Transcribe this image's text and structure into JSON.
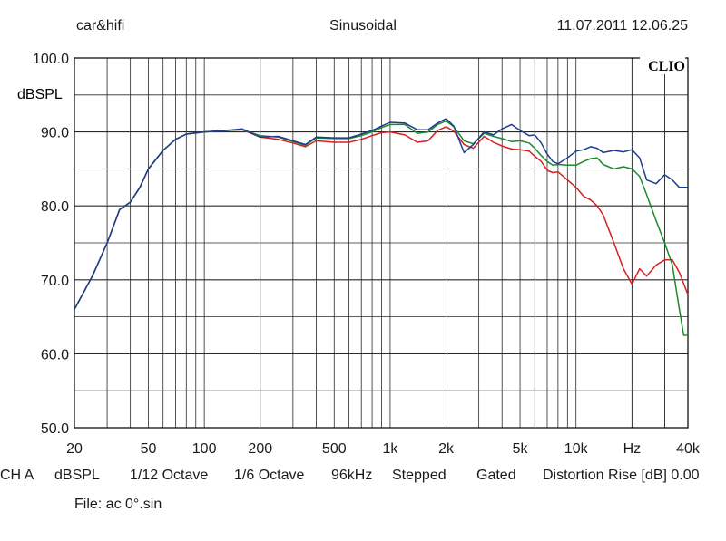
{
  "header": {
    "left": "car&hifi",
    "center": "Sinusoidal",
    "right": "11.07.2011 12.06.25"
  },
  "brand": "CLIO",
  "colors": {
    "grid": "#2a2a2a",
    "blue": "#1f3d8f",
    "green": "#1b8a2e",
    "red": "#d42020"
  },
  "footer": {
    "channel": "CH A",
    "unit": "dBSPL",
    "smoothing1": "1/12 Octave",
    "smoothing2": "1/6 Octave",
    "rate": "96kHz",
    "mode": "Stepped",
    "gating": "Gated",
    "distortion": "Distortion Rise [dB] 0.00",
    "file": "File: ac 0°.sin"
  },
  "chart_data": {
    "type": "line",
    "xscale": "log",
    "xlim": [
      20,
      40000
    ],
    "ylim": [
      50,
      100
    ],
    "ylabel": "dBSPL",
    "grid": true,
    "y_ticks": [
      {
        "v": 100,
        "label": "100.0"
      },
      {
        "v": 90,
        "label": "90.0"
      },
      {
        "v": 80,
        "label": "80.0"
      },
      {
        "v": 70,
        "label": "70.0"
      },
      {
        "v": 60,
        "label": "60.0"
      },
      {
        "v": 50,
        "label": "50.0"
      }
    ],
    "x_ticks": [
      {
        "v": 20,
        "label": "20"
      },
      {
        "v": 50,
        "label": "50"
      },
      {
        "v": 100,
        "label": "100"
      },
      {
        "v": 200,
        "label": "200"
      },
      {
        "v": 500,
        "label": "500"
      },
      {
        "v": 1000,
        "label": "1k"
      },
      {
        "v": 2000,
        "label": "2k"
      },
      {
        "v": 5000,
        "label": "5k"
      },
      {
        "v": 10000,
        "label": "10k"
      },
      {
        "v": 20000,
        "label": "Hz"
      },
      {
        "v": 40000,
        "label": "40k"
      }
    ],
    "series": [
      {
        "color": "#d42020",
        "points": [
          [
            20,
            66
          ],
          [
            25,
            70.5
          ],
          [
            30,
            75
          ],
          [
            35,
            79.5
          ],
          [
            40,
            80.5
          ],
          [
            45,
            82.5
          ],
          [
            50,
            85
          ],
          [
            60,
            87.5
          ],
          [
            70,
            89
          ],
          [
            80,
            89.7
          ],
          [
            100,
            90
          ],
          [
            130,
            90.2
          ],
          [
            160,
            90.3
          ],
          [
            200,
            89.3
          ],
          [
            250,
            89
          ],
          [
            300,
            88.5
          ],
          [
            350,
            88
          ],
          [
            400,
            88.8
          ],
          [
            500,
            88.6
          ],
          [
            600,
            88.6
          ],
          [
            700,
            89
          ],
          [
            800,
            89.5
          ],
          [
            900,
            89.9
          ],
          [
            1000,
            90
          ],
          [
            1200,
            89.6
          ],
          [
            1400,
            88.6
          ],
          [
            1600,
            88.8
          ],
          [
            1800,
            90.2
          ],
          [
            2000,
            90.7
          ],
          [
            2200,
            90.1
          ],
          [
            2500,
            88.3
          ],
          [
            2800,
            87.8
          ],
          [
            3200,
            89.4
          ],
          [
            3600,
            88.6
          ],
          [
            4000,
            88.1
          ],
          [
            4500,
            87.7
          ],
          [
            5000,
            87.6
          ],
          [
            5600,
            87.4
          ],
          [
            6000,
            86.7
          ],
          [
            6500,
            86
          ],
          [
            7000,
            84.8
          ],
          [
            7500,
            84.5
          ],
          [
            8000,
            84.6
          ],
          [
            9000,
            83.5
          ],
          [
            10000,
            82.5
          ],
          [
            11000,
            81.3
          ],
          [
            12000,
            80.8
          ],
          [
            13000,
            80
          ],
          [
            14000,
            78.8
          ],
          [
            16000,
            75
          ],
          [
            18000,
            71.5
          ],
          [
            20000,
            69.4
          ],
          [
            22000,
            71.5
          ],
          [
            24000,
            70.5
          ],
          [
            27000,
            72
          ],
          [
            30000,
            72.7
          ],
          [
            33000,
            72.7
          ],
          [
            36000,
            71
          ],
          [
            40000,
            68
          ]
        ]
      },
      {
        "color": "#1b8a2e",
        "points": [
          [
            20,
            66
          ],
          [
            25,
            70.5
          ],
          [
            30,
            75
          ],
          [
            35,
            79.5
          ],
          [
            40,
            80.5
          ],
          [
            45,
            82.5
          ],
          [
            50,
            85
          ],
          [
            60,
            87.5
          ],
          [
            70,
            89
          ],
          [
            80,
            89.7
          ],
          [
            100,
            90
          ],
          [
            130,
            90.2
          ],
          [
            160,
            90.3
          ],
          [
            200,
            89.5
          ],
          [
            250,
            89.3
          ],
          [
            300,
            88.7
          ],
          [
            350,
            88.2
          ],
          [
            400,
            89.2
          ],
          [
            500,
            89.1
          ],
          [
            600,
            89.1
          ],
          [
            700,
            89.5
          ],
          [
            800,
            90
          ],
          [
            900,
            90.6
          ],
          [
            1000,
            91
          ],
          [
            1200,
            91
          ],
          [
            1400,
            89.8
          ],
          [
            1600,
            90
          ],
          [
            1800,
            91
          ],
          [
            2000,
            91.5
          ],
          [
            2200,
            90.7
          ],
          [
            2500,
            88.8
          ],
          [
            2800,
            88.4
          ],
          [
            3200,
            89.8
          ],
          [
            3600,
            89.4
          ],
          [
            4000,
            89.1
          ],
          [
            4500,
            88.7
          ],
          [
            5000,
            88.8
          ],
          [
            5600,
            88.5
          ],
          [
            6000,
            87.8
          ],
          [
            6500,
            86.8
          ],
          [
            7000,
            86
          ],
          [
            7500,
            85.5
          ],
          [
            8000,
            85.6
          ],
          [
            9000,
            85.5
          ],
          [
            10000,
            85.5
          ],
          [
            11000,
            86
          ],
          [
            12000,
            86.4
          ],
          [
            13000,
            86.5
          ],
          [
            14000,
            85.6
          ],
          [
            16000,
            85
          ],
          [
            18000,
            85.3
          ],
          [
            20000,
            85
          ],
          [
            22000,
            84
          ],
          [
            24000,
            81.5
          ],
          [
            27000,
            78
          ],
          [
            30000,
            75
          ],
          [
            33000,
            72
          ],
          [
            36000,
            66
          ],
          [
            38000,
            62.5
          ],
          [
            40000,
            62.5
          ]
        ]
      },
      {
        "color": "#1f3d8f",
        "points": [
          [
            20,
            66
          ],
          [
            25,
            70.5
          ],
          [
            30,
            75
          ],
          [
            35,
            79.5
          ],
          [
            40,
            80.5
          ],
          [
            45,
            82.5
          ],
          [
            50,
            85
          ],
          [
            60,
            87.5
          ],
          [
            70,
            89
          ],
          [
            80,
            89.7
          ],
          [
            100,
            90
          ],
          [
            130,
            90.2
          ],
          [
            160,
            90.4
          ],
          [
            200,
            89.3
          ],
          [
            250,
            89.4
          ],
          [
            300,
            88.8
          ],
          [
            350,
            88.3
          ],
          [
            400,
            89.3
          ],
          [
            500,
            89.2
          ],
          [
            600,
            89.2
          ],
          [
            700,
            89.7
          ],
          [
            800,
            90.2
          ],
          [
            900,
            90.8
          ],
          [
            1000,
            91.3
          ],
          [
            1200,
            91.2
          ],
          [
            1400,
            90.3
          ],
          [
            1600,
            90.3
          ],
          [
            1800,
            91.2
          ],
          [
            2000,
            91.8
          ],
          [
            2200,
            90.8
          ],
          [
            2500,
            87.2
          ],
          [
            2800,
            88.3
          ],
          [
            3200,
            90
          ],
          [
            3600,
            89.6
          ],
          [
            4000,
            90.4
          ],
          [
            4500,
            91
          ],
          [
            5000,
            90.2
          ],
          [
            5600,
            89.5
          ],
          [
            6000,
            89.6
          ],
          [
            6500,
            88.5
          ],
          [
            7000,
            87
          ],
          [
            7500,
            86
          ],
          [
            8000,
            85.7
          ],
          [
            9000,
            86.5
          ],
          [
            10000,
            87.4
          ],
          [
            11000,
            87.6
          ],
          [
            12000,
            88
          ],
          [
            13000,
            87.8
          ],
          [
            14000,
            87.2
          ],
          [
            16000,
            87.5
          ],
          [
            18000,
            87.3
          ],
          [
            20000,
            87.6
          ],
          [
            22000,
            86.5
          ],
          [
            24000,
            83.5
          ],
          [
            27000,
            83
          ],
          [
            30000,
            84.2
          ],
          [
            33000,
            83.5
          ],
          [
            36000,
            82.5
          ],
          [
            40000,
            82.5
          ]
        ]
      }
    ]
  }
}
